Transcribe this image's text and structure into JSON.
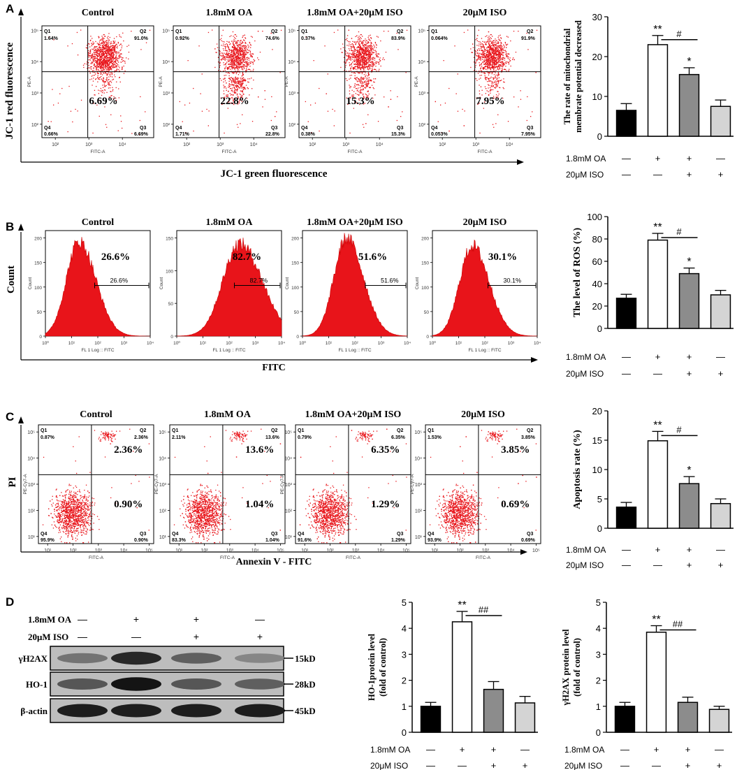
{
  "figure": {
    "panel_letters": [
      "A",
      "B",
      "C",
      "D"
    ],
    "group_titles": [
      "Control",
      "1.8mM OA",
      "1.8mM OA+20μM ISO",
      "20μM ISO"
    ],
    "treatment_rows": {
      "oa_label": "1.8mM OA",
      "iso_label": "20μM  ISO",
      "oa_signs": [
        "—",
        "+",
        "+",
        "—"
      ],
      "iso_signs": [
        "—",
        "—",
        "+",
        "+"
      ]
    },
    "panel_a": {
      "ylabel": "JC-1 red fluorescence",
      "xlabel": "JC-1 green fluorescence",
      "plot_xlabel": "FITC-A",
      "plot_ylabel": "PE-A",
      "xticks": [
        "10²",
        "10³",
        "10⁴"
      ],
      "yticks": [
        "10²",
        "10³",
        "10⁴",
        "10⁵"
      ],
      "quadrant_names": [
        "Q1",
        "Q2",
        "Q3",
        "Q4"
      ],
      "plots": [
        {
          "q1": "1.64%",
          "q2": "91.0%",
          "q3": "6.69%",
          "q4": "0.66%",
          "big": "6.69%"
        },
        {
          "q1": "0.92%",
          "q2": "74.6%",
          "q3": "22.8%",
          "q4": "1.71%",
          "big": "22.8%"
        },
        {
          "q1": "0.37%",
          "q2": "83.9%",
          "q3": "15.3%",
          "q4": "0.38%",
          "big": "15.3%"
        },
        {
          "q1": "0.064%",
          "q2": "91.9%",
          "q3": "7.95%",
          "q4": "0.053%",
          "big": "7.95%"
        }
      ]
    },
    "panel_b": {
      "ylabel": "Count",
      "xlabel": "FITC",
      "plot_xlabel": "FL 1 Log :: FITC",
      "plot_ylabel": "Count",
      "xticks": [
        "10⁰",
        "10¹",
        "10²",
        "10³",
        "10⁴"
      ],
      "plots": [
        {
          "big": "26.6%",
          "gate": "26.6%",
          "yticks": [
            "0",
            "50",
            "100",
            "150",
            "200"
          ]
        },
        {
          "big": "82.7%",
          "gate": "82.7%",
          "yticks": [
            "0",
            "50",
            "100",
            "150"
          ]
        },
        {
          "big": "51.6%",
          "gate": "51.6%",
          "yticks": [
            "0",
            "50",
            "100",
            "150",
            "200"
          ]
        },
        {
          "big": "30.1%",
          "gate": "30.1%",
          "yticks": [
            "0",
            "50",
            "100",
            "150",
            "200"
          ]
        }
      ]
    },
    "panel_c": {
      "ylabel": "PI",
      "xlabel": "Annexin V - FITC",
      "plot_xlabel": "FITC-A",
      "plot_ylabel": "PE-Cy7-A",
      "xticks": [
        "10¹",
        "10²",
        "10³",
        "10⁴",
        "10⁵"
      ],
      "yticks": [
        "10¹",
        "10²",
        "10³",
        "10⁴",
        "10⁵"
      ],
      "quadrant_names": [
        "Q1",
        "Q2",
        "Q3",
        "Q4"
      ],
      "plots": [
        {
          "q1": "0.87%",
          "q2": "2.36%",
          "q3": "0.90%",
          "q4": "95.9%",
          "big_q2": "2.36%",
          "big_q3": "0.90%"
        },
        {
          "q1": "2.11%",
          "q2": "13.6%",
          "q3": "1.04%",
          "q4": "83.3%",
          "big_q2": "13.6%",
          "big_q3": "1.04%"
        },
        {
          "q1": "0.79%",
          "q2": "6.35%",
          "q3": "1.29%",
          "q4": "91.6%",
          "big_q2": "6.35%",
          "big_q3": "1.29%"
        },
        {
          "q1": "1.53%",
          "q2": "3.85%",
          "q3": "0.69%",
          "q4": "93.9%",
          "big_q2": "3.85%",
          "big_q3": "0.69%"
        }
      ]
    },
    "panel_d_blot": {
      "bands": [
        {
          "name": "γH2AX",
          "size": "15kD"
        },
        {
          "name": "HO-1",
          "size": "28kD"
        },
        {
          "name": "β-actin",
          "size": "45kD"
        }
      ]
    }
  },
  "chart_data": [
    {
      "type": "bar",
      "ylabel": "The rate of mitochondrial membrate potential decreased",
      "ylim": [
        0,
        30
      ],
      "yticks": [
        0,
        10,
        20,
        30
      ],
      "categories": [
        "Control",
        "1.8mM OA",
        "1.8mM OA+20μM ISO",
        "20μM ISO"
      ],
      "values": [
        6.5,
        23.0,
        15.5,
        7.5
      ],
      "errors": [
        1.7,
        2.3,
        1.7,
        1.6
      ],
      "bar_colors": [
        "#000000",
        "#ffffff",
        "#8c8c8c",
        "#d4d4d4"
      ],
      "stars": [
        "",
        "**",
        "*",
        ""
      ],
      "bracket": "#"
    },
    {
      "type": "bar",
      "ylabel": "The level of ROS (%)",
      "ylim": [
        0,
        100
      ],
      "yticks": [
        0,
        20,
        40,
        60,
        80,
        100
      ],
      "categories": [
        "Control",
        "1.8mM OA",
        "1.8mM OA+20μM ISO",
        "20μM ISO"
      ],
      "values": [
        27,
        79,
        49,
        30
      ],
      "errors": [
        3.5,
        6,
        5,
        4
      ],
      "bar_colors": [
        "#000000",
        "#ffffff",
        "#8c8c8c",
        "#d4d4d4"
      ],
      "stars": [
        "",
        "**",
        "*",
        ""
      ],
      "bracket": "#"
    },
    {
      "type": "bar",
      "ylabel": "Apoptosis rate (%)",
      "ylim": [
        0,
        20
      ],
      "yticks": [
        0,
        5,
        10,
        15,
        20
      ],
      "categories": [
        "Control",
        "1.8mM OA",
        "1.8mM OA+20μM ISO",
        "20μM ISO"
      ],
      "values": [
        3.6,
        14.9,
        7.6,
        4.2
      ],
      "errors": [
        0.8,
        1.6,
        1.2,
        0.8
      ],
      "bar_colors": [
        "#000000",
        "#ffffff",
        "#8c8c8c",
        "#d4d4d4"
      ],
      "stars": [
        "",
        "**",
        "*",
        ""
      ],
      "bracket": "#"
    },
    {
      "type": "bar",
      "ylabel": "HO-1protein level (fold of control)",
      "ylim": [
        0,
        5
      ],
      "yticks": [
        0,
        1,
        2,
        3,
        4,
        5
      ],
      "categories": [
        "Control",
        "1.8mM OA",
        "1.8mM OA+20μM ISO",
        "20μM ISO"
      ],
      "values": [
        1.0,
        4.25,
        1.65,
        1.13
      ],
      "errors": [
        0.15,
        0.4,
        0.3,
        0.25
      ],
      "bar_colors": [
        "#000000",
        "#ffffff",
        "#8c8c8c",
        "#d4d4d4"
      ],
      "stars": [
        "",
        "**",
        "",
        ""
      ],
      "bracket": "##"
    },
    {
      "type": "bar",
      "ylabel": "γH2AX protein level (fold of control)",
      "ylim": [
        0,
        5
      ],
      "yticks": [
        0,
        1,
        2,
        3,
        4,
        5
      ],
      "categories": [
        "Control",
        "1.8mM OA",
        "1.8mM OA+20μM ISO",
        "20μM ISO"
      ],
      "values": [
        1.0,
        3.85,
        1.15,
        0.88
      ],
      "errors": [
        0.15,
        0.25,
        0.2,
        0.12
      ],
      "bar_colors": [
        "#000000",
        "#ffffff",
        "#8c8c8c",
        "#d4d4d4"
      ],
      "stars": [
        "",
        "**",
        "",
        ""
      ],
      "bracket": "##"
    }
  ]
}
